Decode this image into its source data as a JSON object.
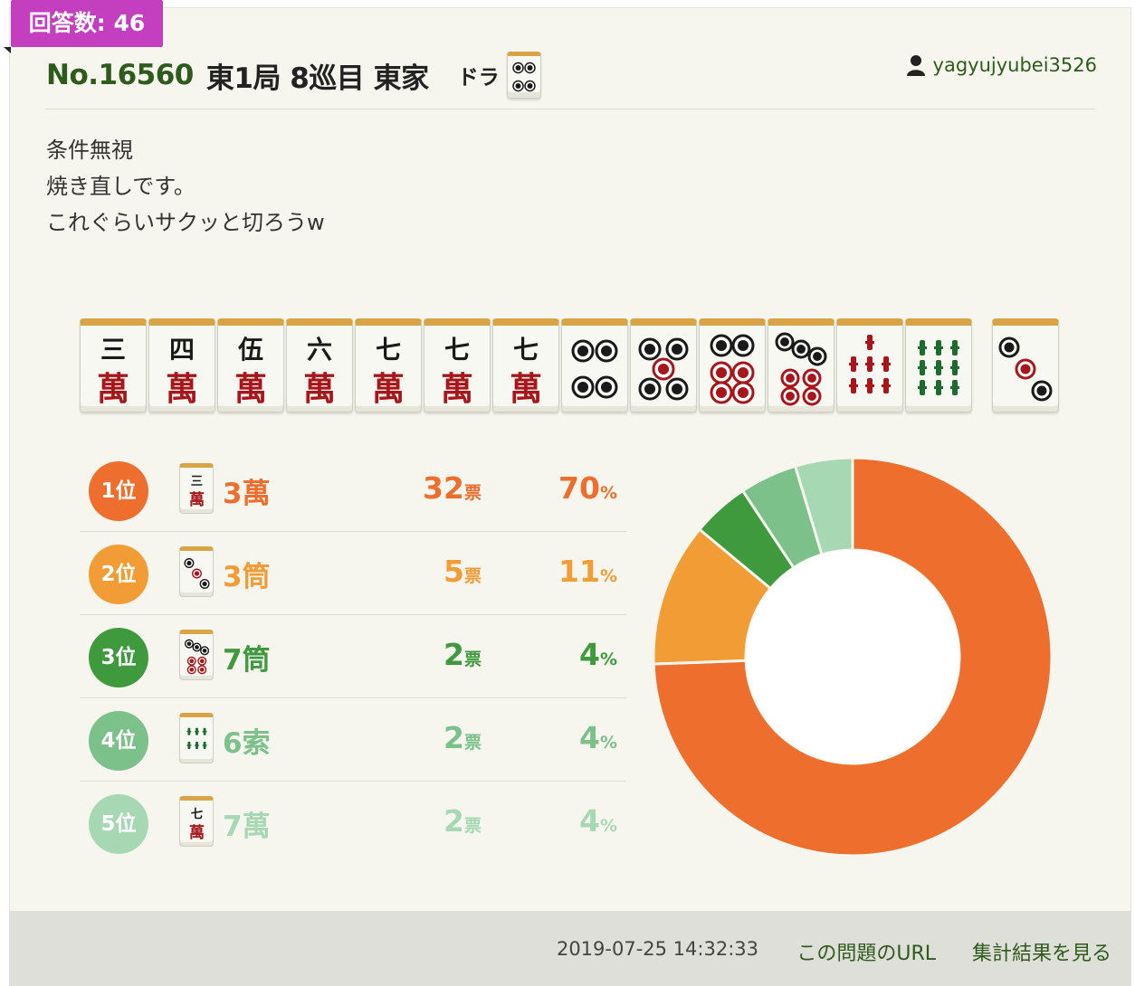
{
  "badge": {
    "label": "回答数: 46"
  },
  "header": {
    "number": "No.16560",
    "situation": "東1局 8巡目 東家",
    "dora_label": "ドラ",
    "dora_tile": "4p",
    "user": "yagyujyubei3526"
  },
  "comment": {
    "lines": [
      "条件無視",
      "",
      "焼き直しです。",
      "これぐらいサクッと切ろうw"
    ]
  },
  "hand": {
    "tiles": [
      "3m",
      "4m",
      "5m",
      "6m",
      "7m",
      "7m",
      "7m",
      "4p",
      "5p",
      "6p",
      "7p",
      "7s",
      "9s"
    ],
    "drawn": "3p"
  },
  "colors": {
    "rank1": "#ee6e2d",
    "rank2": "#f19c35",
    "rank3": "#3f993d",
    "rank4": "#7cc08a",
    "rank5": "#a6d8b3",
    "title_green": "#2e5b1c",
    "badge": "#c43fc0"
  },
  "ranking": [
    {
      "rank_label": "1位",
      "tile": "3m",
      "name": "3萬",
      "votes": "32",
      "vote_unit": "票",
      "pct": "70",
      "pct_unit": "%"
    },
    {
      "rank_label": "2位",
      "tile": "3p",
      "name": "3筒",
      "votes": "5",
      "vote_unit": "票",
      "pct": "11",
      "pct_unit": "%"
    },
    {
      "rank_label": "3位",
      "tile": "7p",
      "name": "7筒",
      "votes": "2",
      "vote_unit": "票",
      "pct": "4",
      "pct_unit": "%"
    },
    {
      "rank_label": "4位",
      "tile": "6s",
      "name": "6索",
      "votes": "2",
      "vote_unit": "票",
      "pct": "4",
      "pct_unit": "%"
    },
    {
      "rank_label": "5位",
      "tile": "7m",
      "name": "7萬",
      "votes": "2",
      "vote_unit": "票",
      "pct": "4",
      "pct_unit": "%"
    }
  ],
  "chart_data": {
    "type": "pie",
    "title": "",
    "categories": [
      "3萬",
      "3筒",
      "7筒",
      "6索",
      "7萬"
    ],
    "values": [
      32,
      5,
      2,
      2,
      2
    ],
    "colors": [
      "#ee6e2d",
      "#f19c35",
      "#3f993d",
      "#7cc08a",
      "#a6d8b3"
    ],
    "donut": true
  },
  "footer": {
    "timestamp": "2019-07-25 14:32:33",
    "url_link": "この問題のURL",
    "results_link": "集計結果を見る"
  }
}
